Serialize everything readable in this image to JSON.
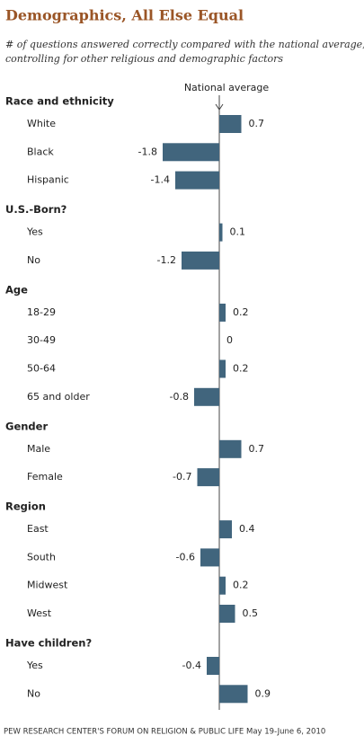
{
  "chart_data": {
    "type": "bar",
    "title": "Demographics, All Else Equal",
    "subtitle": [
      "# of questions answered correctly compared with the national average,",
      "controlling for other religious and demographic factors"
    ],
    "annotation": "National average",
    "color": "#41657d",
    "groups": [
      {
        "name": "Race and ethnicity",
        "categories": [
          "White",
          "Black",
          "Hispanic"
        ],
        "values": [
          0.7,
          -1.8,
          -1.4
        ]
      },
      {
        "name": "U.S.-Born?",
        "categories": [
          "Yes",
          "No"
        ],
        "values": [
          0.1,
          -1.2
        ]
      },
      {
        "name": "Age",
        "categories": [
          "18-29",
          "30-49",
          "50-64",
          "65 and older"
        ],
        "values": [
          0.2,
          0,
          0.2,
          -0.8
        ]
      },
      {
        "name": "Gender",
        "categories": [
          "Male",
          "Female"
        ],
        "values": [
          0.7,
          -0.7
        ]
      },
      {
        "name": "Region",
        "categories": [
          "East",
          "South",
          "Midwest",
          "West"
        ],
        "values": [
          0.4,
          -0.6,
          0.2,
          0.5
        ]
      },
      {
        "name": "Have children?",
        "categories": [
          "Yes",
          "No"
        ],
        "values": [
          -0.4,
          0.9
        ]
      }
    ],
    "source": "PEW RESEARCH CENTER'S FORUM ON RELIGION & PUBLIC LIFE May 19-June 6, 2010"
  }
}
